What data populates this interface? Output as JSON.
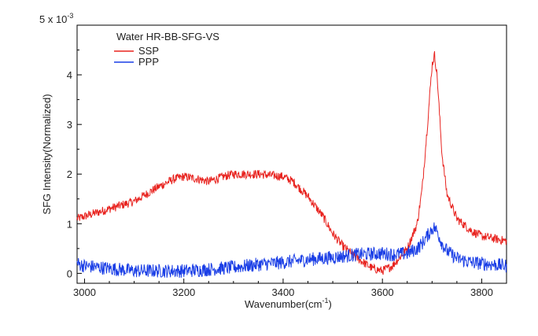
{
  "chart_data": {
    "type": "line",
    "title": "",
    "legend_title": "Water HR-BB-SFG-VS",
    "legend_position": "top-left",
    "xlabel": "Wavenumber(cm",
    "xlabel_superscript": "-1",
    "xlabel_suffix": ")",
    "ylabel": "SFG Intensity(Normalized)",
    "y_scale_label": "5 x 10",
    "y_scale_exponent": "-3",
    "xlim": [
      2985,
      3850
    ],
    "ylim": [
      -0.2,
      5.0
    ],
    "x_ticks": [
      3000,
      3200,
      3400,
      3600,
      3800
    ],
    "x_tick_labels": [
      "3000",
      "3200",
      "3400",
      "3600",
      "3800"
    ],
    "y_ticks": [
      0,
      1,
      2,
      3,
      4
    ],
    "y_tick_labels": [
      "0",
      "1",
      "2",
      "3",
      "4"
    ],
    "grid": false,
    "series": [
      {
        "name": "SSP",
        "color": "#e8231f",
        "x": [
          2985,
          3000,
          3050,
          3100,
          3150,
          3180,
          3200,
          3230,
          3250,
          3280,
          3300,
          3350,
          3400,
          3420,
          3450,
          3480,
          3500,
          3520,
          3550,
          3580,
          3600,
          3620,
          3650,
          3670,
          3680,
          3690,
          3700,
          3705,
          3710,
          3720,
          3730,
          3750,
          3780,
          3800,
          3850
        ],
        "y": [
          1.1,
          1.15,
          1.3,
          1.45,
          1.75,
          1.9,
          1.95,
          1.9,
          1.85,
          1.95,
          2.0,
          2.0,
          1.95,
          1.85,
          1.55,
          1.15,
          0.8,
          0.55,
          0.3,
          0.1,
          0.05,
          0.15,
          0.5,
          1.0,
          1.7,
          2.9,
          4.2,
          4.4,
          4.0,
          2.4,
          1.6,
          1.1,
          0.85,
          0.75,
          0.65
        ]
      },
      {
        "name": "PPP",
        "color": "#1a3ee6",
        "x": [
          2985,
          3000,
          3050,
          3100,
          3150,
          3200,
          3250,
          3300,
          3350,
          3400,
          3450,
          3500,
          3550,
          3600,
          3620,
          3650,
          3670,
          3680,
          3690,
          3700,
          3705,
          3710,
          3720,
          3730,
          3750,
          3780,
          3800,
          3850
        ],
        "y": [
          0.2,
          0.15,
          0.1,
          0.05,
          0.05,
          0.05,
          0.08,
          0.12,
          0.18,
          0.22,
          0.28,
          0.32,
          0.38,
          0.4,
          0.38,
          0.4,
          0.5,
          0.6,
          0.75,
          0.9,
          0.92,
          0.85,
          0.6,
          0.45,
          0.3,
          0.22,
          0.2,
          0.15
        ]
      }
    ]
  }
}
